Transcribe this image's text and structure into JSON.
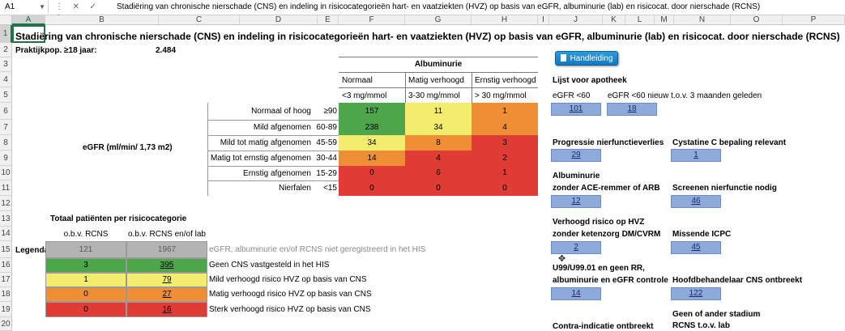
{
  "formula_bar": {
    "name_box": "A1",
    "formula": "Stadiëring van chronische nierschade (CNS) en indeling in risicocategorieën hart- en vaatziekten (HVZ) op basis van eGFR, albuminurie (lab) en risicocat. door nierschade (RCNS)",
    "icons": [
      "more-icon",
      "cancel-icon",
      "confirm-icon",
      "fx-icon"
    ]
  },
  "columns": [
    "A",
    "B",
    "C",
    "D",
    "E",
    "F",
    "G",
    "H",
    "I",
    "J",
    "K",
    "L",
    "M",
    "N",
    "O",
    "P"
  ],
  "rows": [
    "1",
    "2",
    "3",
    "4",
    "5",
    "6",
    "7",
    "8",
    "9",
    "10",
    "11",
    "12",
    "13",
    "14",
    "15",
    "16",
    "17",
    "18",
    "19",
    "20"
  ],
  "title": "Stadiëring van chronische nierschade (CNS) en indeling in risicocategorieën hart- en vaatziekten (HVZ) op basis van eGFR, albuminurie (lab) en risicocat. door nierschade (RCNS)",
  "praktijkpop_label": "Praktijkpop. ≥18 jaar:",
  "praktijkpop_value": "2.484",
  "albuminurie": {
    "header": "Albuminurie",
    "categories": [
      {
        "label": "Normaal",
        "range": "<3 mg/mmol"
      },
      {
        "label": "Matig verhoogd",
        "range": "3-30 mg/mmol"
      },
      {
        "label": "Ernstig verhoogd",
        "range": "> 30 mg/mmol"
      }
    ]
  },
  "egfr_label": "eGFR (ml/min/ 1,73 m2)",
  "egfr_rows": [
    {
      "label": "Normaal of hoog",
      "range": "≥90",
      "values": [
        "157",
        "11",
        "1"
      ]
    },
    {
      "label": "Mild afgenomen",
      "range": "60-89",
      "values": [
        "238",
        "34",
        "4"
      ]
    },
    {
      "label": "Mild tot matig afgenomen",
      "range": "45-59",
      "values": [
        "34",
        "8",
        "3"
      ]
    },
    {
      "label": "Matig tot ernstig afgenomen",
      "range": "30-44",
      "values": [
        "14",
        "4",
        "2"
      ]
    },
    {
      "label": "Ernstig afgenomen",
      "range": "15-29",
      "values": [
        "0",
        "6",
        "1"
      ]
    },
    {
      "label": "Nierfalen",
      "range": "<15",
      "values": [
        "0",
        "0",
        "0"
      ]
    }
  ],
  "colors": {
    "green": "#4ea64a",
    "yellow": "#f3ed6d",
    "orange": "#ef8f35",
    "red": "#de3c34",
    "grey": "#b3b3b3",
    "link_box": "#8eaadb",
    "button": "#1a87cf"
  },
  "totals": {
    "title": "Totaal patiënten per risicocategorie",
    "col1": "o.b.v. RCNS",
    "col2": "o.b.v. RCNS en/of lab",
    "legenda_label": "Legenda:",
    "rows": [
      {
        "v1": "121",
        "v2": "1967",
        "text": "eGFR, albuminurie en/of RCNS niet geregistreerd in het HIS"
      },
      {
        "v1": "3",
        "v2": "395",
        "text": "Geen CNS vastgesteld in het HIS"
      },
      {
        "v1": "1",
        "v2": "79",
        "text": "Mild verhoogd risico HVZ op basis van CNS"
      },
      {
        "v1": "0",
        "v2": "27",
        "text": "Matig verhoogd risico HVZ op basis van CNS"
      },
      {
        "v1": "0",
        "v2": "16",
        "text": "Sterk verhoogd risico HVZ op basis van CNS"
      }
    ]
  },
  "handleiding": "Handleiding",
  "apotheek": {
    "title": "Lijst voor apotheek",
    "item1_label": "eGFR <60",
    "item1_value": "101",
    "item2_label": "eGFR <60 nieuw t.o.v. 3 maanden geleden",
    "item2_value": "18"
  },
  "lists": [
    {
      "label": "Progressie nierfunctieverlies",
      "value": "29"
    },
    {
      "label": "Cystatine C bepaling relevant",
      "value": "1"
    },
    {
      "label": "Albuminurie",
      "label2": "zonder ACE-remmer of ARB",
      "value": "12"
    },
    {
      "label": "Screenen nierfunctie nodig",
      "value": "46"
    },
    {
      "label": "Verhoogd risico op HVZ",
      "label2": "zonder ketenzorg DM/CVRM",
      "value": "2"
    },
    {
      "label": "Missende ICPC",
      "value": "45"
    },
    {
      "label": "U99/U99.01 en geen RR,",
      "label2": "albuminurie en eGFR controle",
      "value": "14"
    },
    {
      "label": "Hoofdbehandelaar CNS ontbreekt",
      "value": "122"
    },
    {
      "label": "Contra-indicatie ontbreekt"
    },
    {
      "label": "Geen of ander stadium",
      "label2": "RCNS t.o.v. lab"
    }
  ]
}
